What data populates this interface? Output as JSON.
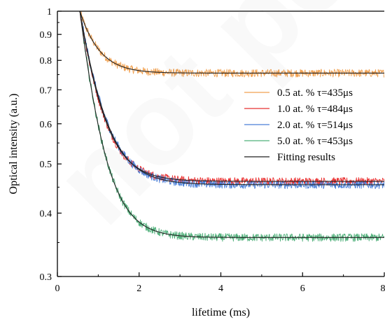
{
  "chart_data": {
    "type": "line",
    "title": "",
    "xlabel": "lifetime (ms)",
    "ylabel": "Optical intensity (a.u.)",
    "xlim": [
      0,
      8
    ],
    "ylim": [
      0.3,
      1.0
    ],
    "yscale": "log",
    "x_ticks": [
      0,
      2,
      4,
      6,
      8
    ],
    "x_tick_labels": [
      "0",
      "2",
      "4",
      "6",
      "8"
    ],
    "y_ticks": [
      0.3,
      0.4,
      0.5,
      0.6,
      0.7,
      0.8,
      0.9,
      1.0
    ],
    "y_tick_labels": [
      "0.3",
      "0.4",
      "0.5",
      "0.6",
      "0.7",
      "0.8",
      "0.9",
      "1"
    ],
    "grid": false,
    "legend_position": "right",
    "decay_start_ms": 0.55,
    "series": [
      {
        "name": "0.5 at. %  τ=435μs",
        "color": "#f0a050",
        "start": 1.0,
        "plateau": 0.755,
        "tau_ms": 0.435,
        "points": [
          [
            0.55,
            1.0
          ],
          [
            0.8,
            0.905
          ],
          [
            1.0,
            0.86
          ],
          [
            1.2,
            0.818
          ],
          [
            1.5,
            0.786
          ],
          [
            2.0,
            0.764
          ],
          [
            3.0,
            0.756
          ],
          [
            4.0,
            0.755
          ],
          [
            6.0,
            0.755
          ],
          [
            8.0,
            0.755
          ]
        ]
      },
      {
        "name": "1.0 at. %  τ=484μs",
        "color": "#e83030",
        "start": 1.0,
        "plateau": 0.462,
        "tau_ms": 0.484,
        "points": [
          [
            0.55,
            1.0
          ],
          [
            0.8,
            0.86
          ],
          [
            1.0,
            0.76
          ],
          [
            1.5,
            0.62
          ],
          [
            2.0,
            0.545
          ],
          [
            2.5,
            0.5
          ],
          [
            3.0,
            0.478
          ],
          [
            4.0,
            0.465
          ],
          [
            6.0,
            0.462
          ],
          [
            8.0,
            0.462
          ]
        ]
      },
      {
        "name": "2.0 at. %  τ=514μs",
        "color": "#4a7fd8",
        "start": 1.0,
        "plateau": 0.455,
        "tau_ms": 0.514,
        "points": [
          [
            0.55,
            1.0
          ],
          [
            0.8,
            0.862
          ],
          [
            1.0,
            0.765
          ],
          [
            1.5,
            0.625
          ],
          [
            2.0,
            0.55
          ],
          [
            2.5,
            0.5
          ],
          [
            3.0,
            0.476
          ],
          [
            4.0,
            0.46
          ],
          [
            6.0,
            0.455
          ],
          [
            8.0,
            0.455
          ]
        ]
      },
      {
        "name": "5.0 at. %  τ=453μs",
        "color": "#4fb07a",
        "start": 1.0,
        "plateau": 0.358,
        "tau_ms": 0.453,
        "points": [
          [
            0.55,
            1.0
          ],
          [
            0.8,
            0.79
          ],
          [
            1.0,
            0.66
          ],
          [
            1.5,
            0.5
          ],
          [
            2.0,
            0.415
          ],
          [
            2.5,
            0.38
          ],
          [
            3.0,
            0.367
          ],
          [
            4.0,
            0.36
          ],
          [
            6.0,
            0.358
          ],
          [
            8.0,
            0.358
          ]
        ]
      },
      {
        "name": "Fitting results",
        "color": "#222222",
        "type": "fit"
      }
    ]
  },
  "watermark": {
    "text": "not pe"
  }
}
